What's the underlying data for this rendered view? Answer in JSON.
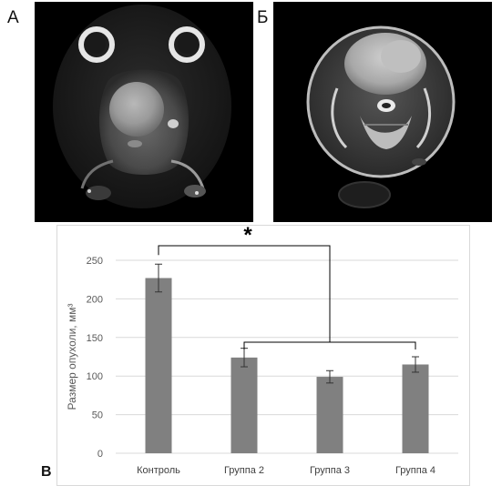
{
  "panels": {
    "a_label": "А",
    "b_label": "Б",
    "c_label": "В"
  },
  "chart_data": {
    "type": "bar",
    "categories": [
      "Контроль",
      "Группа 2",
      "Группа 3",
      "Группа 4"
    ],
    "values": [
      227,
      124,
      99,
      115
    ],
    "errors": [
      18,
      12,
      8,
      10
    ],
    "ylabel": "Размер опухоли, мм³",
    "ylim": [
      0,
      250
    ],
    "yticks": [
      0,
      50,
      100,
      150,
      200,
      250
    ],
    "grid": true,
    "significance_label": "*",
    "bar_color": "#808080"
  }
}
